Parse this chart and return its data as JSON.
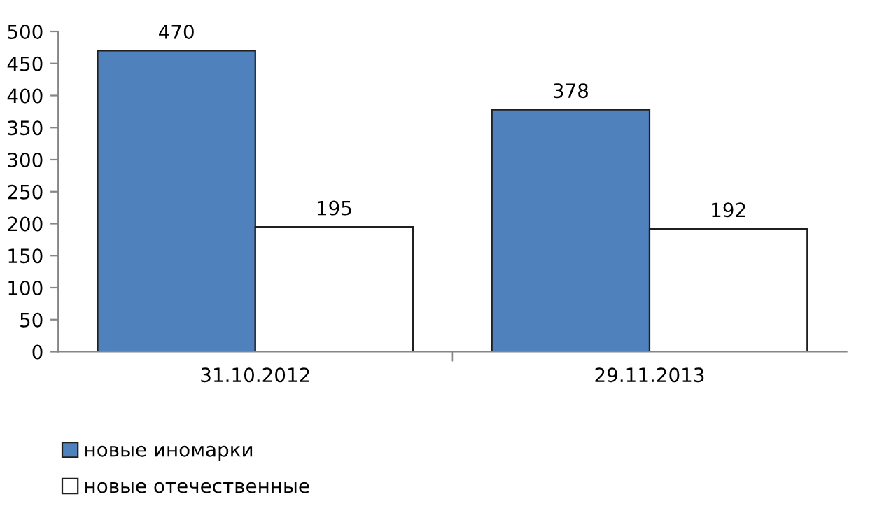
{
  "chart_data": {
    "type": "bar",
    "categories": [
      "31.10.2012",
      "29.11.2013"
    ],
    "series": [
      {
        "name": "новые иномарки",
        "color": "#4f81bd",
        "values": [
          470,
          378
        ]
      },
      {
        "name": "новые отечественные",
        "color": "#ffffff",
        "values": [
          195,
          192
        ]
      }
    ],
    "ylim": [
      0,
      500
    ],
    "yticks": [
      0,
      50,
      100,
      150,
      200,
      250,
      300,
      350,
      400,
      450,
      500
    ],
    "data_labels": true,
    "grid": false,
    "legend": "bottom left"
  }
}
